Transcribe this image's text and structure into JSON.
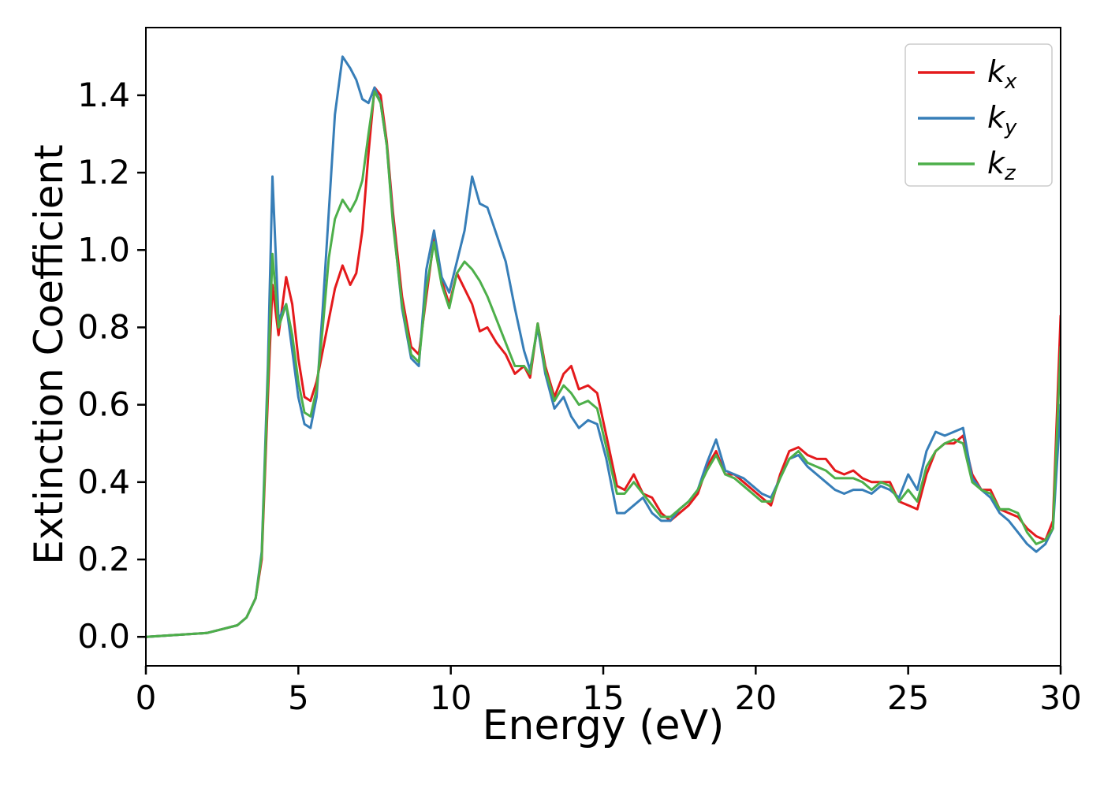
{
  "figure": {
    "background": "#ffffff",
    "spine_color": "#000000",
    "tick_label_color": "#000000"
  },
  "chart_data": {
    "type": "line",
    "title": "",
    "xlabel": "Energy (eV)",
    "ylabel": "Extinction Coefficient",
    "xlim": [
      0,
      30
    ],
    "ylim": [
      -0.075,
      1.575
    ],
    "x_ticks": [
      0,
      5,
      10,
      15,
      20,
      25,
      30
    ],
    "y_ticks": [
      0.0,
      0.2,
      0.4,
      0.6,
      0.8,
      1.0,
      1.2,
      1.4
    ],
    "grid": false,
    "legend_position": "upper right",
    "x": [
      0,
      1,
      2,
      2.5,
      3,
      3.3,
      3.6,
      3.8,
      4.0,
      4.15,
      4.35,
      4.6,
      4.8,
      5.0,
      5.2,
      5.4,
      5.6,
      5.8,
      6.0,
      6.2,
      6.45,
      6.7,
      6.9,
      7.1,
      7.3,
      7.5,
      7.7,
      7.9,
      8.1,
      8.4,
      8.7,
      8.95,
      9.2,
      9.45,
      9.7,
      9.95,
      10.2,
      10.45,
      10.7,
      10.95,
      11.2,
      11.5,
      11.8,
      12.1,
      12.4,
      12.6,
      12.85,
      13.1,
      13.4,
      13.7,
      13.95,
      14.2,
      14.5,
      14.8,
      15.1,
      15.45,
      15.7,
      16.0,
      16.3,
      16.6,
      16.9,
      17.2,
      17.5,
      17.8,
      18.1,
      18.4,
      18.7,
      19.0,
      19.3,
      19.6,
      19.9,
      20.2,
      20.5,
      20.8,
      21.1,
      21.4,
      21.7,
      22.0,
      22.3,
      22.6,
      22.9,
      23.2,
      23.5,
      23.8,
      24.1,
      24.4,
      24.7,
      25.0,
      25.3,
      25.6,
      25.9,
      26.2,
      26.5,
      26.8,
      27.1,
      27.4,
      27.7,
      28.0,
      28.3,
      28.6,
      28.9,
      29.2,
      29.5,
      29.75,
      30.0
    ],
    "series": [
      {
        "name": "kx",
        "label_base": "k",
        "label_sub": "x",
        "color": "#e41a1c",
        "values": [
          0,
          0.005,
          0.01,
          0.02,
          0.03,
          0.05,
          0.1,
          0.2,
          0.62,
          0.91,
          0.78,
          0.93,
          0.86,
          0.72,
          0.62,
          0.61,
          0.66,
          0.74,
          0.82,
          0.9,
          0.96,
          0.91,
          0.94,
          1.05,
          1.25,
          1.42,
          1.4,
          1.28,
          1.1,
          0.88,
          0.75,
          0.73,
          0.88,
          1.03,
          0.92,
          0.86,
          0.94,
          0.9,
          0.86,
          0.79,
          0.8,
          0.76,
          0.73,
          0.68,
          0.7,
          0.67,
          0.81,
          0.7,
          0.62,
          0.68,
          0.7,
          0.64,
          0.65,
          0.63,
          0.52,
          0.39,
          0.38,
          0.42,
          0.37,
          0.36,
          0.32,
          0.3,
          0.32,
          0.34,
          0.37,
          0.44,
          0.48,
          0.42,
          0.42,
          0.4,
          0.38,
          0.36,
          0.34,
          0.42,
          0.48,
          0.49,
          0.47,
          0.46,
          0.46,
          0.43,
          0.42,
          0.43,
          0.41,
          0.4,
          0.4,
          0.4,
          0.35,
          0.34,
          0.33,
          0.42,
          0.48,
          0.5,
          0.5,
          0.52,
          0.42,
          0.38,
          0.38,
          0.33,
          0.32,
          0.31,
          0.28,
          0.26,
          0.25,
          0.3,
          0.83
        ]
      },
      {
        "name": "ky",
        "label_base": "k",
        "label_sub": "y",
        "color": "#377eb8",
        "values": [
          0,
          0.005,
          0.01,
          0.02,
          0.03,
          0.05,
          0.1,
          0.22,
          0.7,
          1.19,
          0.82,
          0.86,
          0.74,
          0.62,
          0.55,
          0.54,
          0.62,
          0.85,
          1.1,
          1.35,
          1.5,
          1.47,
          1.44,
          1.39,
          1.38,
          1.42,
          1.38,
          1.27,
          1.08,
          0.85,
          0.72,
          0.7,
          0.95,
          1.05,
          0.93,
          0.89,
          0.97,
          1.05,
          1.19,
          1.12,
          1.11,
          1.04,
          0.97,
          0.85,
          0.74,
          0.69,
          0.8,
          0.68,
          0.59,
          0.62,
          0.57,
          0.54,
          0.56,
          0.55,
          0.46,
          0.32,
          0.32,
          0.34,
          0.36,
          0.32,
          0.3,
          0.3,
          0.33,
          0.35,
          0.38,
          0.45,
          0.51,
          0.43,
          0.42,
          0.41,
          0.39,
          0.37,
          0.36,
          0.41,
          0.46,
          0.47,
          0.44,
          0.42,
          0.4,
          0.38,
          0.37,
          0.38,
          0.38,
          0.37,
          0.39,
          0.38,
          0.36,
          0.42,
          0.38,
          0.48,
          0.53,
          0.52,
          0.53,
          0.54,
          0.41,
          0.38,
          0.36,
          0.32,
          0.3,
          0.27,
          0.24,
          0.22,
          0.24,
          0.28,
          0.6
        ]
      },
      {
        "name": "kz",
        "label_base": "k",
        "label_sub": "z",
        "color": "#4daf4a",
        "values": [
          0,
          0.005,
          0.01,
          0.02,
          0.03,
          0.05,
          0.1,
          0.21,
          0.66,
          0.99,
          0.8,
          0.86,
          0.78,
          0.66,
          0.58,
          0.57,
          0.64,
          0.8,
          0.98,
          1.08,
          1.13,
          1.1,
          1.13,
          1.18,
          1.3,
          1.41,
          1.38,
          1.27,
          1.07,
          0.86,
          0.73,
          0.71,
          0.9,
          1.02,
          0.91,
          0.85,
          0.94,
          0.97,
          0.95,
          0.92,
          0.88,
          0.82,
          0.76,
          0.7,
          0.7,
          0.68,
          0.81,
          0.69,
          0.61,
          0.65,
          0.63,
          0.6,
          0.61,
          0.59,
          0.49,
          0.37,
          0.37,
          0.4,
          0.37,
          0.34,
          0.31,
          0.31,
          0.33,
          0.35,
          0.38,
          0.43,
          0.47,
          0.42,
          0.41,
          0.39,
          0.37,
          0.35,
          0.35,
          0.41,
          0.46,
          0.48,
          0.45,
          0.44,
          0.43,
          0.41,
          0.41,
          0.41,
          0.4,
          0.38,
          0.4,
          0.39,
          0.35,
          0.38,
          0.35,
          0.44,
          0.48,
          0.5,
          0.51,
          0.5,
          0.4,
          0.38,
          0.37,
          0.33,
          0.33,
          0.32,
          0.27,
          0.24,
          0.25,
          0.28,
          0.75
        ]
      }
    ]
  }
}
